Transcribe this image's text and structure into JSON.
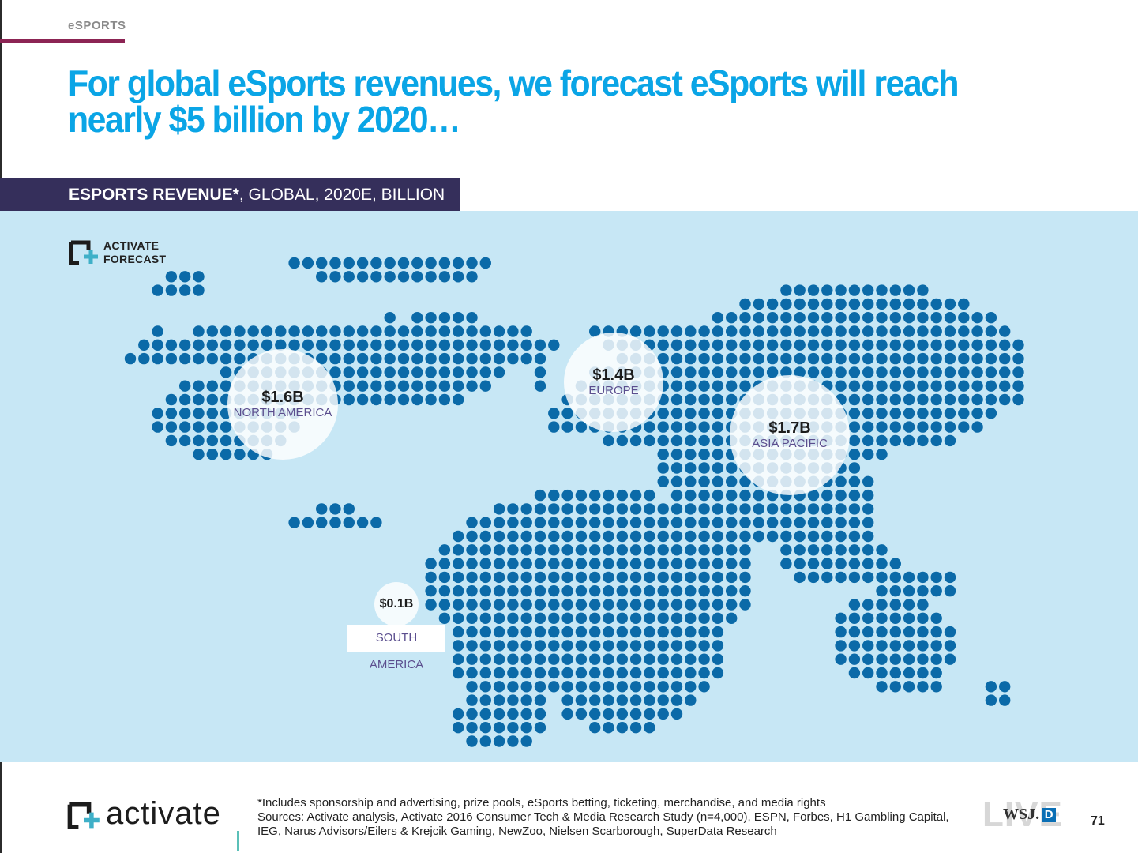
{
  "section": {
    "tag": "eSPORTS"
  },
  "headline": "For global eSports revenues, we forecast eSports will reach nearly $5 billion by 2020…",
  "chart_banner": {
    "bold_part": "ESPORTS REVENUE*",
    "rest": ", GLOBAL, 2020E, BILLION"
  },
  "forecast_badge": {
    "line1": "ACTIVATE",
    "line2": "FORECAST"
  },
  "chart_data": {
    "type": "map",
    "title": "ESPORTS REVENUE*, GLOBAL, 2020E, BILLION",
    "unit": "USD billion",
    "regions": [
      {
        "name": "NORTH AMERICA",
        "label": "$1.6B",
        "value": 1.6
      },
      {
        "name": "EUROPE",
        "label": "$1.4B",
        "value": 1.4
      },
      {
        "name": "ASIA PACIFIC",
        "label": "$1.7B",
        "value": 1.7
      },
      {
        "name": "SOUTH AMERICA",
        "label": "$0.1B",
        "value": 0.1
      }
    ]
  },
  "colors": {
    "headline": "#0aa5e6",
    "banner": "#352f5b",
    "map_bg": "#c7e7f5",
    "dot": "#0b6aa8",
    "region_text": "#5b4e8e",
    "accent": "#8c2454"
  },
  "footer": {
    "brand": "activate",
    "note": "*Includes sponsorship and advertising, prize pools, eSports betting, ticketing, merchandise, and media rights",
    "sources": "Sources: Activate analysis, Activate 2016 Consumer Tech & Media Research Study (n=4,000), ESPN, Forbes, H1 Gambling Capital, IEG, Narus Advisors/Eilers & Krejcik Gaming, NewZoo, Nielsen Scarborough, SuperData Research",
    "live_word": "LIVE",
    "wsj": "WSJ.",
    "wsj_d": "D",
    "page_number": "71"
  }
}
